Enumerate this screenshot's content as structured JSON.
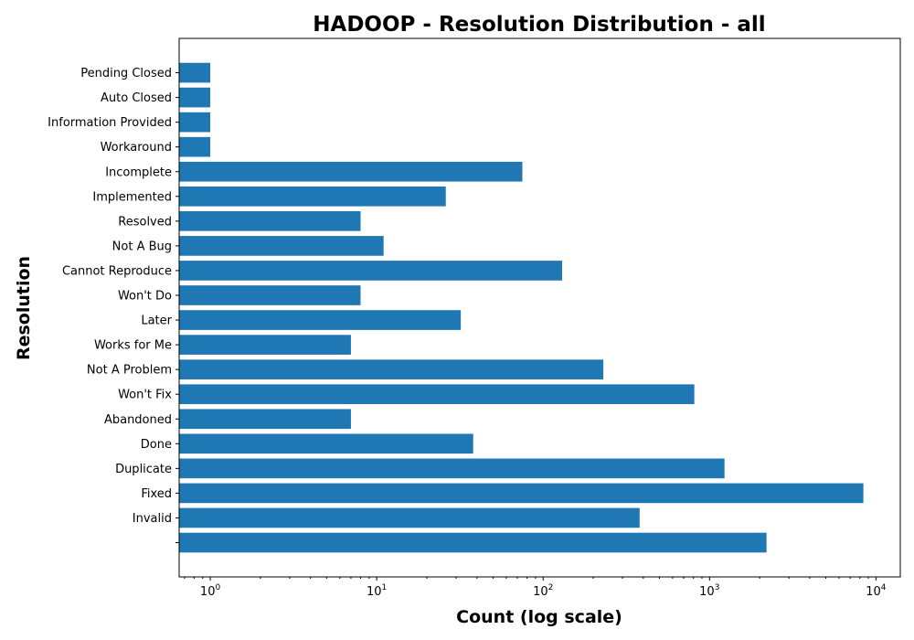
{
  "chart_data": {
    "type": "bar",
    "orientation": "horizontal",
    "title": "HADOOP - Resolution Distribution - all",
    "xlabel": "Count (log scale)",
    "ylabel": "Resolution",
    "x_scale": "log",
    "xlim": [
      0.65,
      14000
    ],
    "x_ticks": [
      1,
      10,
      100,
      1000,
      10000
    ],
    "grid": false,
    "bar_color": "#1f77b4",
    "categories": [
      "",
      "Invalid",
      "Fixed",
      "Duplicate",
      "Done",
      "Abandoned",
      "Won't Fix",
      "Not A Problem",
      "Works for Me",
      "Later",
      "Won't Do",
      "Cannot Reproduce",
      "Not A Bug",
      "Resolved",
      "Implemented",
      "Incomplete",
      "Workaround",
      "Information Provided",
      "Auto Closed",
      "Pending Closed"
    ],
    "values": [
      2200,
      380,
      8400,
      1230,
      38,
      7,
      810,
      230,
      7,
      32,
      8,
      130,
      11,
      8,
      26,
      75,
      1,
      1,
      1,
      1
    ]
  }
}
